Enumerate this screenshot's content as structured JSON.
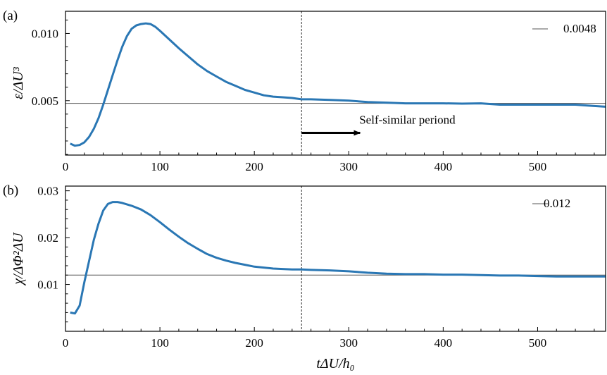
{
  "chart_data": [
    {
      "type": "line",
      "panel_label": "(a)",
      "ylabel": "ε/ΔU³",
      "xlim": [
        0,
        572
      ],
      "ylim": [
        0.00095,
        0.01165
      ],
      "yticks": [
        0.005,
        0.01
      ],
      "ytick_labels": [
        "0.005",
        "0.010"
      ],
      "xticks": [
        0,
        100,
        200,
        300,
        400,
        500
      ],
      "xtick_labels": [
        "0",
        "100",
        "200",
        "300",
        "400",
        "500"
      ],
      "series": [
        {
          "color": "#2a77b4",
          "x": [
            5,
            10,
            15,
            20,
            25,
            30,
            35,
            40,
            45,
            50,
            55,
            60,
            65,
            70,
            75,
            80,
            85,
            90,
            95,
            100,
            110,
            120,
            130,
            140,
            150,
            160,
            170,
            180,
            190,
            200,
            210,
            220,
            230,
            240,
            250,
            260,
            280,
            300,
            320,
            340,
            360,
            380,
            400,
            420,
            440,
            460,
            480,
            500,
            520,
            540,
            560,
            572
          ],
          "y": [
            0.0018,
            0.00165,
            0.0017,
            0.0019,
            0.0023,
            0.0029,
            0.0037,
            0.0047,
            0.0058,
            0.0069,
            0.008,
            0.009,
            0.0098,
            0.01035,
            0.0106,
            0.0107,
            0.01075,
            0.0107,
            0.0105,
            0.0102,
            0.00955,
            0.0089,
            0.0083,
            0.0077,
            0.0072,
            0.0068,
            0.0064,
            0.0061,
            0.0058,
            0.0056,
            0.0054,
            0.0053,
            0.00525,
            0.0052,
            0.0051,
            0.0051,
            0.00505,
            0.005,
            0.0049,
            0.00485,
            0.0048,
            0.0048,
            0.0048,
            0.00478,
            0.0048,
            0.0047,
            0.0047,
            0.0047,
            0.0047,
            0.0047,
            0.0046,
            0.00455
          ]
        }
      ],
      "hline": 0.0048,
      "vline": 250,
      "legend": {
        "label": "0.0048",
        "placement": "top-right"
      },
      "annotation": {
        "text": "Self-similar periond",
        "arrow_from": [
          250,
          0.0026
        ],
        "arrow_to": [
          312,
          0.0026
        ]
      }
    },
    {
      "type": "line",
      "panel_label": "(b)",
      "ylabel": "χ/ΔΦ²ΔU",
      "xlabel": "tΔU/h₀",
      "xlim": [
        0,
        572
      ],
      "ylim": [
        0.0,
        0.031
      ],
      "yticks": [
        0.01,
        0.02,
        0.03
      ],
      "ytick_labels": [
        "0.01",
        "0.02",
        "0.03"
      ],
      "xticks": [
        0,
        100,
        200,
        300,
        400,
        500
      ],
      "xtick_labels": [
        "0",
        "100",
        "200",
        "300",
        "400",
        "500"
      ],
      "series": [
        {
          "color": "#2a77b4",
          "x": [
            5,
            10,
            15,
            20,
            25,
            30,
            35,
            40,
            45,
            50,
            55,
            60,
            70,
            80,
            90,
            100,
            110,
            120,
            130,
            140,
            150,
            160,
            170,
            180,
            190,
            200,
            210,
            220,
            230,
            240,
            250,
            260,
            280,
            300,
            320,
            340,
            360,
            380,
            400,
            420,
            440,
            460,
            480,
            500,
            520,
            540,
            560,
            572
          ],
          "y": [
            0.004,
            0.0038,
            0.0055,
            0.0105,
            0.015,
            0.0195,
            0.023,
            0.0258,
            0.0272,
            0.0276,
            0.0276,
            0.0274,
            0.0268,
            0.026,
            0.0248,
            0.0233,
            0.0217,
            0.0202,
            0.0188,
            0.0176,
            0.0165,
            0.0157,
            0.0151,
            0.0146,
            0.0142,
            0.0138,
            0.0136,
            0.0134,
            0.0133,
            0.0132,
            0.0132,
            0.0131,
            0.013,
            0.0128,
            0.0125,
            0.0123,
            0.0122,
            0.0122,
            0.0121,
            0.0121,
            0.012,
            0.0119,
            0.0119,
            0.0118,
            0.0117,
            0.0117,
            0.0117,
            0.0117
          ]
        }
      ],
      "hline": 0.012,
      "vline": 250,
      "legend": {
        "label": "0.012",
        "placement": "top-right"
      }
    }
  ]
}
